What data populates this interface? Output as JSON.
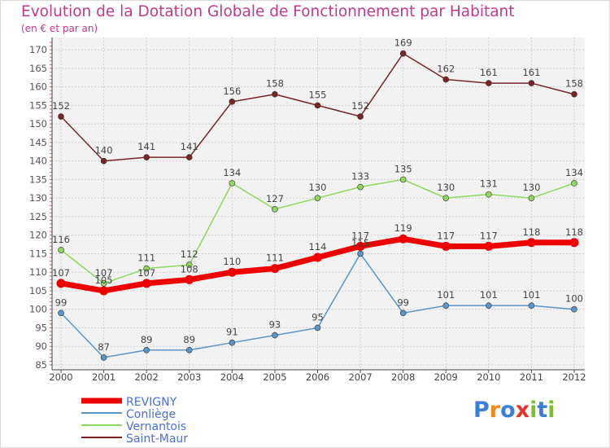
{
  "title": "Evolution de la Dotation Globale de Fonctionnement par Habitant",
  "subtitle": "(en € et par an)",
  "logo": {
    "text": "Proxiti",
    "letters": [
      "P",
      "r",
      "o",
      "x",
      "i",
      "t",
      "i"
    ],
    "colors": [
      "#3a7fd6",
      "#f08a1c",
      "#3a7fd6",
      "#e8332a",
      "#7cbf2a",
      "#3a7fd6",
      "#7cbf2a"
    ]
  },
  "chart_data": {
    "type": "line",
    "title": "Evolution de la Dotation Globale de Fonctionnement par Habitant",
    "subtitle": "(en € et par an)",
    "xlabel": "",
    "ylabel": "",
    "x": [
      "2000",
      "2001",
      "2002",
      "2003",
      "2004",
      "2005",
      "2006",
      "2007",
      "2008",
      "2009",
      "2010",
      "2011",
      "2012"
    ],
    "ylim": [
      85,
      172
    ],
    "yticks": [
      85,
      90,
      95,
      100,
      105,
      110,
      115,
      120,
      125,
      130,
      135,
      140,
      145,
      150,
      155,
      160,
      165,
      170
    ],
    "grid": true,
    "legend": "bottom-left",
    "series": [
      {
        "name": "REVIGNY",
        "color": "#ee0000",
        "values": [
          107,
          105,
          107,
          108,
          110,
          111,
          114,
          117,
          119,
          117,
          117,
          118,
          118
        ]
      },
      {
        "name": "Conliège",
        "color": "#5b95c8",
        "values": [
          99,
          87,
          89,
          89,
          91,
          93,
          95,
          115,
          99,
          101,
          101,
          101,
          100
        ]
      },
      {
        "name": "Vernantois",
        "color": "#8ed85e",
        "values": [
          116,
          107,
          111,
          112,
          134,
          127,
          130,
          133,
          135,
          130,
          131,
          130,
          134
        ]
      },
      {
        "name": "Saint-Maur",
        "color": "#7a2428",
        "values": [
          152,
          140,
          141,
          141,
          156,
          158,
          155,
          152,
          169,
          162,
          161,
          161,
          158
        ]
      }
    ]
  }
}
